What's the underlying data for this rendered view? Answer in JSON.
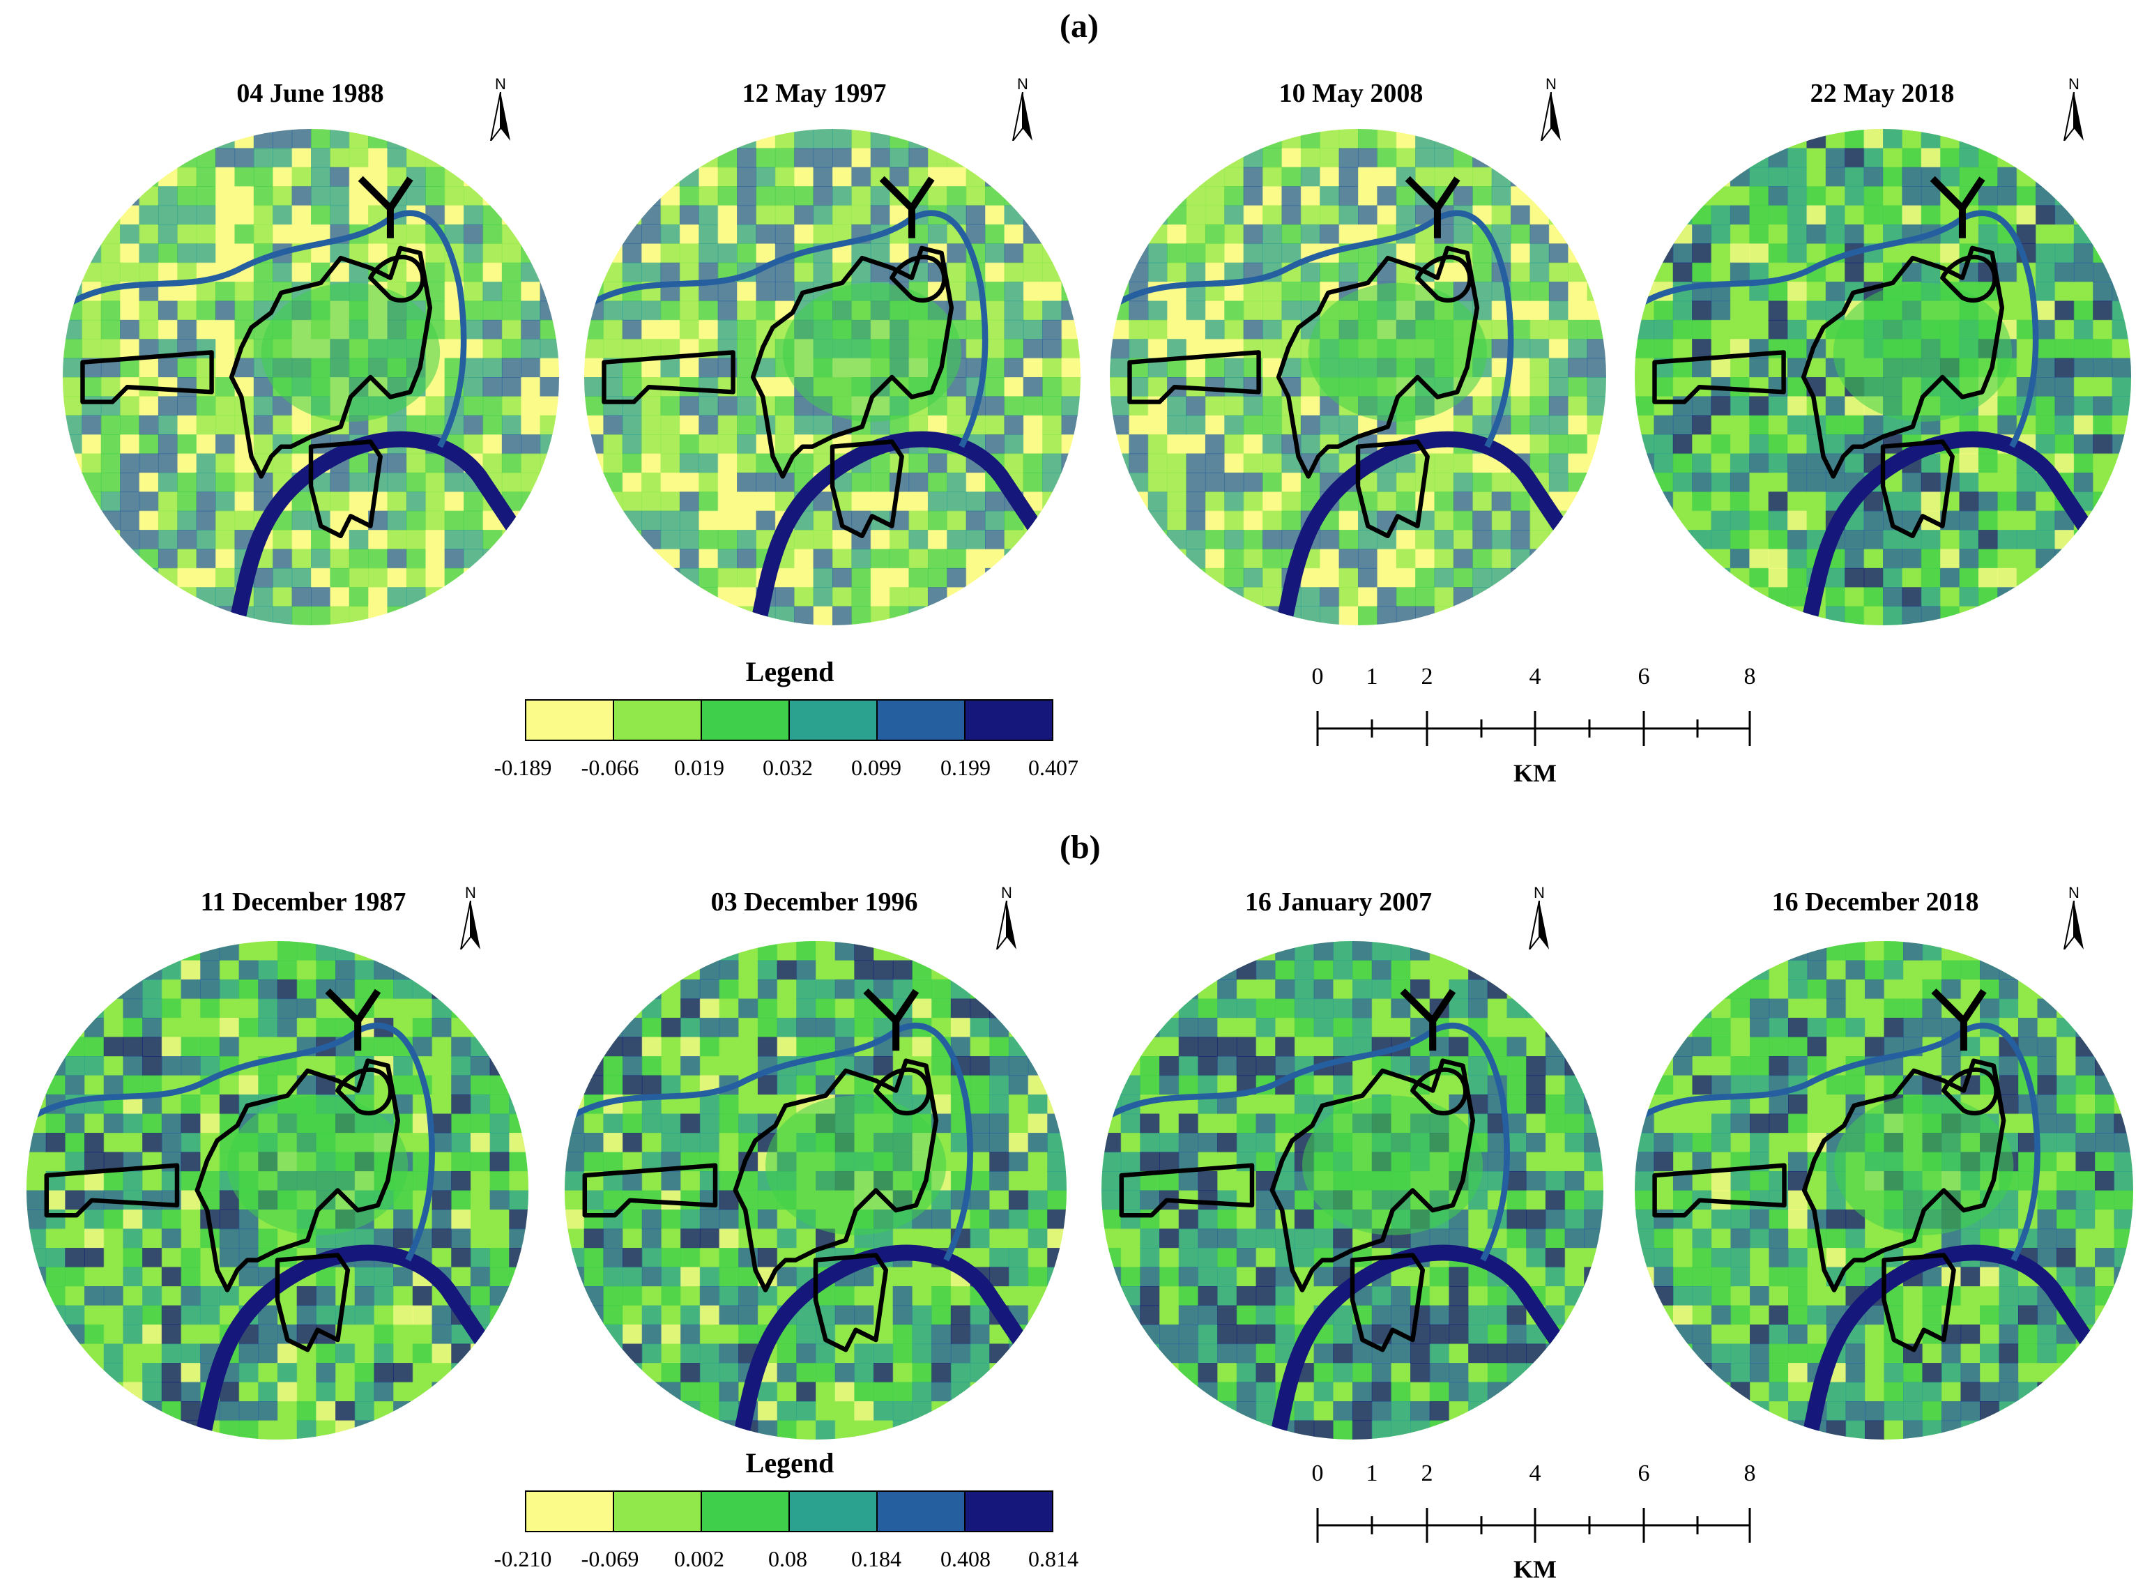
{
  "colors": {
    "classes": [
      "#fbfb8a",
      "#90e84a",
      "#3fcf4a",
      "#2ba18f",
      "#255fa0",
      "#15177a"
    ],
    "boundary": "#000000"
  },
  "panel_a": {
    "label": "(a)",
    "dates": [
      "04 June 1988",
      "12 May 1997",
      "10 May 2008",
      "22 May 2018"
    ],
    "legend_title": "Legend",
    "legend_values": [
      "-0.189",
      "-0.066",
      "0.019",
      "0.032",
      "0.099",
      "0.199",
      "0.407"
    ],
    "scale_numbers": [
      "0",
      "1",
      "2",
      "4",
      "6",
      "8"
    ],
    "scale_unit": "KM",
    "map_tone": [
      0.25,
      0.35,
      0.3,
      0.5
    ]
  },
  "panel_b": {
    "label": "(b)",
    "dates": [
      "11 December 1987",
      "03 December 1996",
      "16 January 2007",
      "16 December 2018"
    ],
    "legend_title": "Legend",
    "legend_values": [
      "-0.210",
      "-0.069",
      "0.002",
      "0.08",
      "0.184",
      "0.408",
      "0.814"
    ],
    "scale_numbers": [
      "0",
      "1",
      "2",
      "4",
      "6",
      "8"
    ],
    "scale_unit": "KM",
    "map_tone": [
      0.55,
      0.5,
      0.65,
      0.55
    ]
  },
  "north_label": "N"
}
